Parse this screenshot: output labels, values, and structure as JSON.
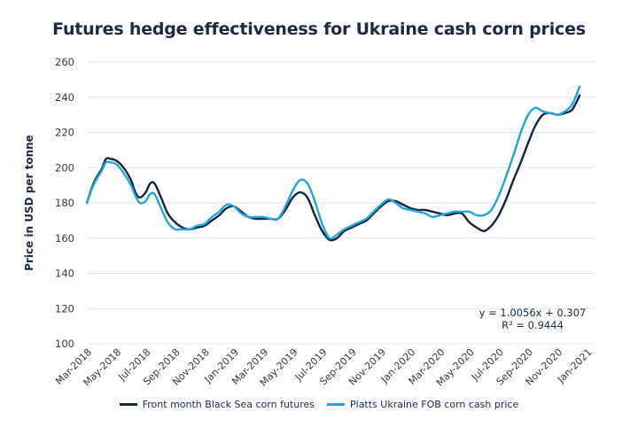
{
  "chart_data": {
    "type": "line",
    "title": "Futures hedge effectiveness for Ukraine cash corn prices",
    "xlabel": "",
    "ylabel": "Price in USD per tonne",
    "ylim": [
      100,
      260
    ],
    "yticks": [
      100,
      120,
      140,
      160,
      180,
      200,
      220,
      240,
      260
    ],
    "grid": true,
    "legend_position": "bottom",
    "x_unit": "months since Mar-2018",
    "xlim": [
      0,
      34.6
    ],
    "xtick_labels": [
      "Mar-2018",
      "May-2018",
      "Jul-2018",
      "Sep-2018",
      "Nov-2018",
      "Jan-2019",
      "Mar-2019",
      "May-2019",
      "Jul-2019",
      "Sep-2019",
      "Nov-2019",
      "Jan-2020",
      "Mar-2020",
      "May-2020",
      "Jul-2020",
      "Sep-2020",
      "Nov-2020",
      "Jan-2021"
    ],
    "xtick_positions": [
      0,
      2,
      4,
      6,
      8,
      10,
      12,
      14,
      16,
      18,
      20,
      22,
      24,
      26,
      28,
      30,
      32,
      34
    ],
    "annotations": [
      "y = 1.0056x + 0.307",
      "R² = 0.9444"
    ],
    "series": [
      {
        "name": "Front month Black Sea corn futures",
        "color": "#14233f",
        "x": [
          0,
          0.5,
          1,
          1.3,
          1.6,
          2,
          2.5,
          3,
          3.3,
          3.6,
          4,
          4.3,
          4.6,
          5,
          5.5,
          6,
          6.5,
          7,
          7.5,
          8,
          8.5,
          9,
          9.5,
          10,
          10.5,
          11,
          11.5,
          12,
          12.5,
          13,
          13.5,
          14,
          14.5,
          15,
          15.5,
          16,
          16.5,
          17,
          17.5,
          18,
          18.5,
          19,
          19.5,
          20,
          20.5,
          21,
          21.5,
          22,
          22.5,
          23,
          23.5,
          24,
          24.5,
          25,
          25.5,
          26,
          26.5,
          27,
          27.5,
          28,
          28.5,
          29,
          29.5,
          30,
          30.5,
          31,
          31.5,
          32,
          32.5,
          33,
          33.5
        ],
        "values": [
          180,
          192,
          199,
          205,
          205,
          204,
          200,
          193,
          186,
          183,
          186,
          191,
          191,
          184,
          174,
          169,
          166,
          165,
          166,
          167,
          170,
          173,
          177,
          178,
          175,
          172,
          171,
          171,
          171,
          171,
          176,
          183,
          186,
          183,
          173,
          164,
          159,
          160,
          164,
          166,
          168,
          170,
          174,
          178,
          181,
          181,
          179,
          177,
          176,
          176,
          175,
          174,
          173,
          174,
          174,
          169,
          166,
          164,
          167,
          173,
          182,
          193,
          203,
          214,
          224,
          230,
          231,
          230,
          231,
          233,
          241
        ]
      },
      {
        "name": "Platts Ukraine FOB corn cash price",
        "color": "#1fa6dc",
        "x": [
          0,
          0.5,
          1,
          1.3,
          1.6,
          2,
          2.5,
          3,
          3.3,
          3.6,
          4,
          4.3,
          4.6,
          5,
          5.5,
          6,
          6.5,
          7,
          7.5,
          8,
          8.5,
          9,
          9.5,
          10,
          10.5,
          11,
          11.5,
          12,
          12.5,
          13,
          13.5,
          14,
          14.5,
          15,
          15.5,
          16,
          16.5,
          17,
          17.5,
          18,
          18.5,
          19,
          19.5,
          20,
          20.5,
          21,
          21.5,
          22,
          22.5,
          23,
          23.5,
          24,
          24.5,
          25,
          25.5,
          26,
          26.5,
          27,
          27.5,
          28,
          28.5,
          29,
          29.5,
          30,
          30.5,
          31,
          31.5,
          32,
          32.5,
          33,
          33.5
        ],
        "values": [
          180,
          191,
          198,
          203,
          203,
          202,
          197,
          190,
          184,
          180,
          181,
          185,
          185,
          178,
          169,
          165,
          165,
          165,
          167,
          168,
          172,
          175,
          179,
          178,
          174,
          172,
          172,
          172,
          171,
          171,
          178,
          187,
          193,
          191,
          181,
          168,
          160,
          162,
          165,
          167,
          169,
          171,
          175,
          179,
          182,
          180,
          177,
          176,
          175,
          174,
          172,
          173,
          174,
          175,
          175,
          175,
          173,
          173,
          176,
          184,
          195,
          207,
          220,
          230,
          234,
          232,
          231,
          230,
          232,
          236,
          246
        ]
      }
    ]
  }
}
